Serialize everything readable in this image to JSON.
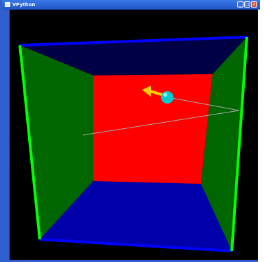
{
  "window": {
    "title": "VPython"
  },
  "title_buttons": {
    "minimize": "_",
    "maximize": "□",
    "close": "×"
  },
  "scene": {
    "background_color": "#000000",
    "colors": {
      "back_wall": "#ff0000",
      "side_walls": "#006600",
      "ceiling": "#000044",
      "floor": "#0000aa",
      "vertical_edges": "#00ff00",
      "horizontal_edges": "#0000ff",
      "ball": "#00cccc",
      "arrow": "#ffcc00",
      "trail": "#aaaaaa"
    },
    "icons": {
      "ball": "sphere-icon",
      "arrow": "velocity-arrow-icon"
    }
  }
}
